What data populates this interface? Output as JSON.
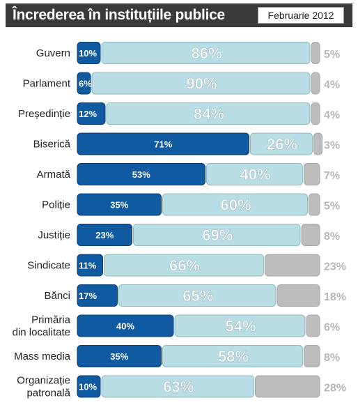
{
  "header": {
    "title": "Încrederea în instituțiile publice",
    "date": "Februarie 2012"
  },
  "colors": {
    "trust": "#0f5aa0",
    "distrust": "#b9dde4",
    "no_answer": "#bdbdbd",
    "header_bg": "#3a3a3a"
  },
  "chart_data": {
    "type": "bar",
    "stacked": true,
    "orientation": "horizontal",
    "title": "Încrederea în instituțiile publice",
    "subtitle": "Februarie 2012",
    "categories": [
      [
        "Guvern"
      ],
      [
        "Parlament"
      ],
      [
        "Președinție"
      ],
      [
        "Biserică"
      ],
      [
        "Armată"
      ],
      [
        "Poliție"
      ],
      [
        "Justiție"
      ],
      [
        "Sindicate"
      ],
      [
        "Bănci"
      ],
      [
        "Primăria",
        "din localitate"
      ],
      [
        "Mass media"
      ],
      [
        "Organizație",
        "patronală"
      ]
    ],
    "value_labels": [
      [
        "10%",
        "86%",
        "5%"
      ],
      [
        "6%",
        "90%",
        "4%"
      ],
      [
        "12%",
        "84%",
        "4%"
      ],
      [
        "71%",
        "26%",
        "3%"
      ],
      [
        "53%",
        "40%",
        "7%"
      ],
      [
        "35%",
        "60%",
        "5%"
      ],
      [
        "23%",
        "69%",
        "8%"
      ],
      [
        "11%",
        "66%",
        "23%"
      ],
      [
        "17%",
        "65%",
        "18%"
      ],
      [
        "40%",
        "54%",
        "6%"
      ],
      [
        "35%",
        "58%",
        "8%"
      ],
      [
        "10%",
        "63%",
        "28%"
      ]
    ],
    "series": [
      {
        "values": [
          10,
          6,
          12,
          71,
          53,
          35,
          23,
          11,
          17,
          40,
          35,
          10
        ]
      },
      {
        "values": [
          86,
          90,
          84,
          26,
          40,
          60,
          69,
          66,
          65,
          54,
          58,
          63
        ]
      },
      {
        "values": [
          5,
          4,
          4,
          3,
          7,
          5,
          8,
          23,
          18,
          6,
          8,
          28
        ]
      }
    ],
    "xlim": [
      0,
      100
    ],
    "grid": false,
    "legend": "none"
  }
}
